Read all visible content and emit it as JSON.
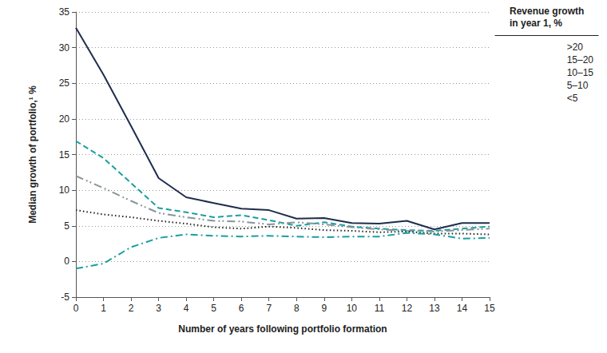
{
  "chart_data": {
    "type": "line",
    "x_label": "Number of years following portfolio formation",
    "y_label": "Median growth of portfolio,¹ %",
    "legend_title": "Revenue growth in year 1, %",
    "x": [
      0,
      1,
      2,
      3,
      4,
      5,
      6,
      7,
      8,
      9,
      10,
      11,
      12,
      13,
      14,
      15
    ],
    "xlim": [
      0,
      15
    ],
    "xticks": [
      0,
      1,
      2,
      3,
      4,
      5,
      6,
      7,
      8,
      9,
      10,
      11,
      12,
      13,
      14,
      15
    ],
    "ylim": [
      -5,
      35
    ],
    "yticks": [
      -5,
      0,
      5,
      10,
      15,
      20,
      25,
      30,
      35
    ],
    "grid": true,
    "legend": "top-right",
    "series": [
      {
        "name": ">20",
        "color": "#1f2d4d",
        "line_style": "solid",
        "values": [
          32.8,
          26.2,
          19.0,
          11.7,
          9.0,
          8.2,
          7.4,
          7.2,
          6.0,
          6.1,
          5.4,
          5.3,
          5.7,
          4.5,
          5.4,
          5.4
        ]
      },
      {
        "name": "15–20",
        "color": "#1a9ea0",
        "line_style": "dashed",
        "values": [
          16.9,
          14.5,
          11.0,
          7.5,
          6.9,
          6.2,
          6.5,
          5.8,
          5.0,
          5.5,
          4.9,
          4.6,
          4.4,
          4.3,
          4.6,
          4.9
        ]
      },
      {
        "name": "10–15",
        "color": "#8a9499",
        "line_style": "dashdotdot",
        "values": [
          12.0,
          10.3,
          8.5,
          6.8,
          6.2,
          5.7,
          5.6,
          5.2,
          5.5,
          5.2,
          4.8,
          4.5,
          4.3,
          4.2,
          4.4,
          4.6
        ]
      },
      {
        "name": "5–10",
        "color": "#222222",
        "line_style": "dotted",
        "values": [
          7.2,
          6.6,
          6.2,
          5.7,
          5.3,
          4.8,
          4.6,
          4.9,
          4.7,
          4.4,
          4.3,
          4.1,
          4.2,
          3.9,
          3.9,
          3.8
        ]
      },
      {
        "name": "<5",
        "color": "#1a9ea0",
        "line_style": "dashdot",
        "values": [
          -1.0,
          -0.3,
          2.0,
          3.3,
          3.8,
          3.6,
          3.5,
          3.6,
          3.5,
          3.4,
          3.5,
          3.5,
          4.0,
          3.8,
          3.2,
          3.3
        ]
      }
    ]
  }
}
